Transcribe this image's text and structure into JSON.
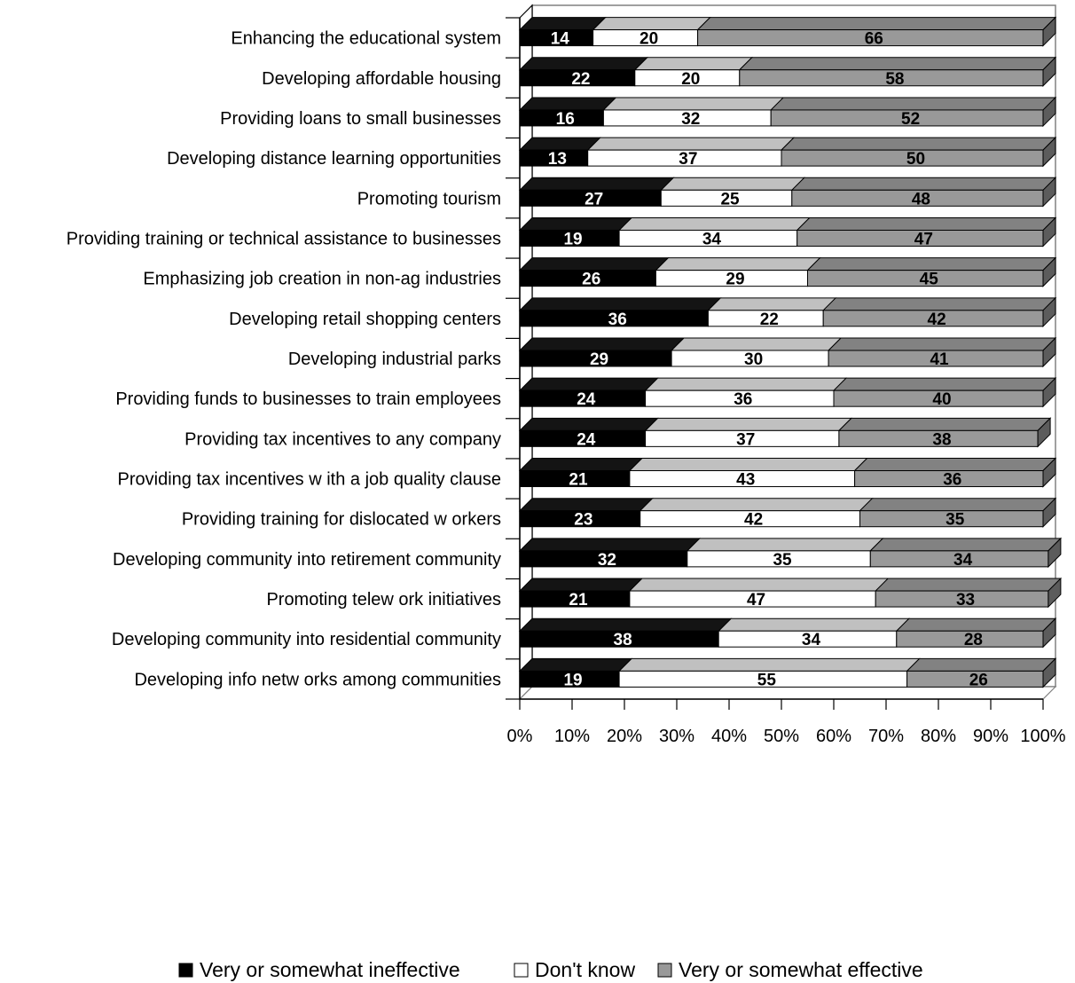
{
  "chart_data": {
    "type": "bar",
    "orientation": "horizontal",
    "stacked": "100%",
    "three_d": true,
    "categories": [
      "Enhancing the educational system",
      "Developing affordable housing",
      "Providing loans to small businesses",
      "Developing distance learning opportunities",
      "Promoting tourism",
      "Providing training or technical assistance to businesses",
      "Emphasizing job creation in non-ag industries",
      "Developing retail shopping centers",
      "Developing industrial parks",
      "Providing funds to businesses to train employees",
      "Providing tax incentives to any company",
      "Providing tax incentives w ith a job quality clause",
      "Providing training for dislocated w orkers",
      "Developing community into retirement community",
      "Promoting telew ork initiatives",
      "Developing community into residential community",
      "Developing info netw orks among communities"
    ],
    "series": [
      {
        "name": "Very or somewhat ineffective",
        "color": "#000000",
        "label_color": "#ffffff",
        "values": [
          14,
          22,
          16,
          13,
          27,
          19,
          26,
          36,
          29,
          24,
          24,
          21,
          23,
          32,
          21,
          38,
          19
        ]
      },
      {
        "name": "Don't know",
        "color": "#ffffff",
        "label_color": "#000000",
        "values": [
          20,
          20,
          32,
          37,
          25,
          34,
          29,
          22,
          30,
          36,
          37,
          43,
          42,
          35,
          47,
          34,
          55
        ]
      },
      {
        "name": "Very or somewhat effective",
        "color": "#999999",
        "label_color": "#000000",
        "values": [
          66,
          58,
          52,
          50,
          48,
          47,
          45,
          42,
          41,
          40,
          38,
          36,
          35,
          34,
          33,
          28,
          26
        ]
      }
    ],
    "x_ticks": [
      "0%",
      "10%",
      "20%",
      "30%",
      "40%",
      "50%",
      "60%",
      "70%",
      "80%",
      "90%",
      "100%"
    ],
    "xlim": [
      0,
      100
    ],
    "legend_position": "bottom",
    "grid": false
  }
}
